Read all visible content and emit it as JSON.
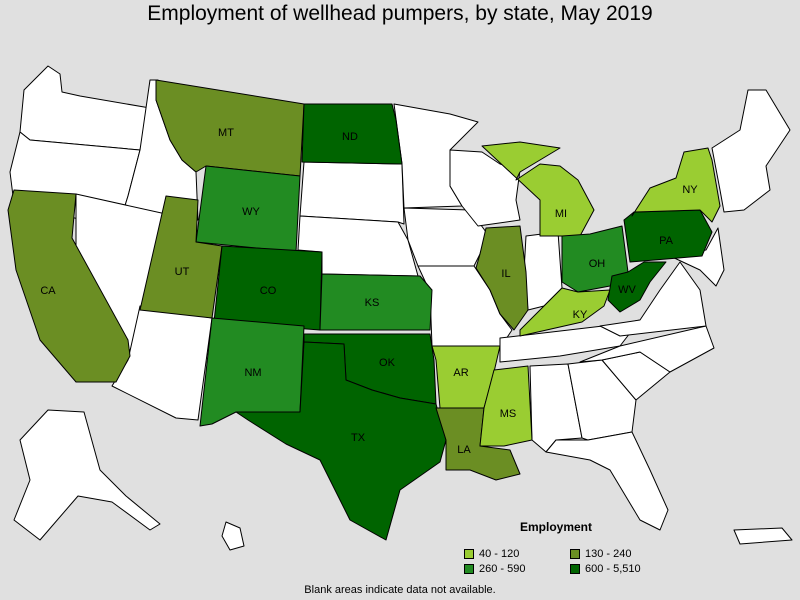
{
  "title": "Employment of wellhead pumpers, by state, May 2019",
  "legend": {
    "title": "Employment",
    "items": [
      {
        "label": "40 - 120",
        "color": "#9acd32"
      },
      {
        "label": "130 - 240",
        "color": "#6b8e23"
      },
      {
        "label": "260 - 590",
        "color": "#228b22"
      },
      {
        "label": "600 - 5,510",
        "color": "#006400"
      }
    ]
  },
  "footnote": "Blank areas indicate data not available.",
  "colors": {
    "blank": "#ffffff",
    "tier1": "#9acd32",
    "tier2": "#6b8e23",
    "tier3": "#228b22",
    "tier4": "#006400"
  },
  "states": {
    "MT": {
      "label": "MT",
      "tier": "tier2"
    },
    "ND": {
      "label": "ND",
      "tier": "tier4"
    },
    "WY": {
      "label": "WY",
      "tier": "tier3"
    },
    "UT": {
      "label": "UT",
      "tier": "tier2"
    },
    "CO": {
      "label": "CO",
      "tier": "tier4"
    },
    "CA": {
      "label": "CA",
      "tier": "tier2"
    },
    "NM": {
      "label": "NM",
      "tier": "tier3"
    },
    "KS": {
      "label": "KS",
      "tier": "tier3"
    },
    "OK": {
      "label": "OK",
      "tier": "tier4"
    },
    "TX": {
      "label": "TX",
      "tier": "tier4"
    },
    "AR": {
      "label": "AR",
      "tier": "tier1"
    },
    "LA": {
      "label": "LA",
      "tier": "tier2"
    },
    "MS": {
      "label": "MS",
      "tier": "tier1"
    },
    "IL": {
      "label": "IL",
      "tier": "tier2"
    },
    "MI": {
      "label": "MI",
      "tier": "tier1"
    },
    "OH": {
      "label": "OH",
      "tier": "tier3"
    },
    "KY": {
      "label": "KY",
      "tier": "tier1"
    },
    "WV": {
      "label": "WV",
      "tier": "tier4"
    },
    "PA": {
      "label": "PA",
      "tier": "tier4"
    },
    "NY": {
      "label": "NY",
      "tier": "tier1"
    }
  }
}
